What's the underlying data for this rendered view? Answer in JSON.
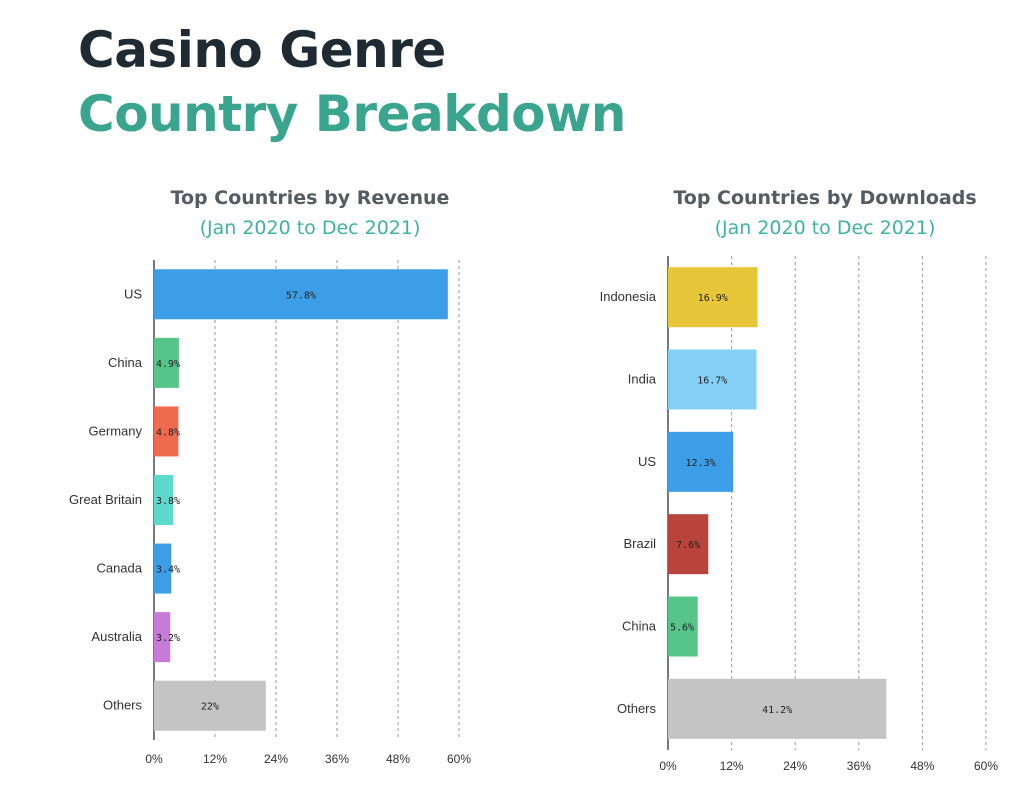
{
  "header": {
    "line1": "Casino Genre",
    "line2": "Country Breakdown"
  },
  "colors": {
    "title_dark": "#1f2a33",
    "title_teal": "#3aa58f",
    "subtitle_teal": "#3fb3a0"
  },
  "chart_data": [
    {
      "type": "bar",
      "orientation": "horizontal",
      "title": "Top Countries by Revenue",
      "subtitle": "(Jan 2020 to Dec 2021)",
      "categories": [
        "US",
        "China",
        "Germany",
        "Great Britain",
        "Canada",
        "Australia",
        "Others"
      ],
      "values": [
        57.8,
        4.9,
        4.8,
        3.8,
        3.4,
        3.2,
        22
      ],
      "value_labels": [
        "57.8%",
        "4.9%",
        "4.8%",
        "3.8%",
        "3.4%",
        "3.2%",
        "22%"
      ],
      "colors": [
        "#3d9ee8",
        "#57c48a",
        "#ef6a4e",
        "#5fd8cc",
        "#3d9ee8",
        "#c77ad8",
        "#c4c4c4"
      ],
      "xticks": [
        0,
        12,
        24,
        36,
        48,
        60
      ],
      "xtick_labels": [
        "0%",
        "12%",
        "24%",
        "36%",
        "48%",
        "60%"
      ],
      "xlim": [
        0,
        60
      ],
      "grid": true
    },
    {
      "type": "bar",
      "orientation": "horizontal",
      "title": "Top Countries by Downloads",
      "subtitle": "(Jan 2020 to Dec 2021)",
      "categories": [
        "Indonesia",
        "India",
        "US",
        "Brazil",
        "China",
        "Others"
      ],
      "values": [
        16.9,
        16.7,
        12.3,
        7.6,
        5.6,
        41.2
      ],
      "value_labels": [
        "16.9%",
        "16.7%",
        "12.3%",
        "7.6%",
        "5.6%",
        "41.2%"
      ],
      "colors": [
        "#e8c63a",
        "#84cff5",
        "#3d9ee8",
        "#b8443b",
        "#57c48a",
        "#c4c4c4"
      ],
      "xticks": [
        0,
        12,
        24,
        36,
        48,
        60
      ],
      "xtick_labels": [
        "0%",
        "12%",
        "24%",
        "36%",
        "48%",
        "60%"
      ],
      "xlim": [
        0,
        60
      ],
      "grid": true
    }
  ]
}
